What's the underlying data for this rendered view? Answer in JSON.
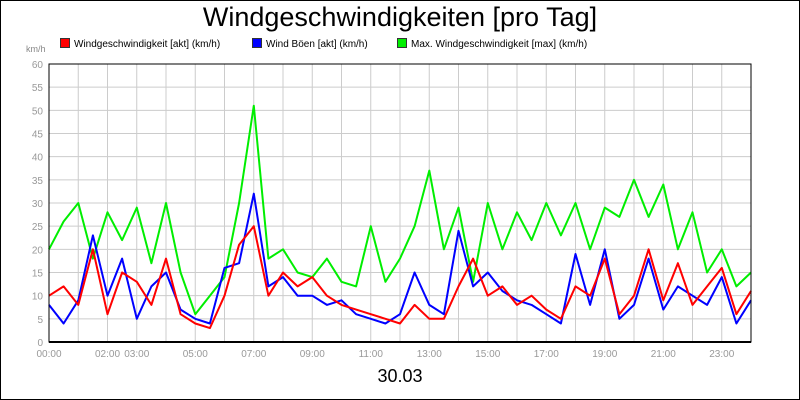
{
  "chart_data": {
    "type": "line",
    "title": "Windgeschwindigkeiten [pro Tag]",
    "subtitle": "30.03",
    "yunit": "km/h",
    "ylim": [
      0,
      60
    ],
    "yticks": [
      0,
      5,
      10,
      15,
      20,
      25,
      30,
      35,
      40,
      45,
      50,
      55,
      60
    ],
    "xlim": [
      0,
      24
    ],
    "xticks": [
      {
        "h": 0,
        "label": "00:00"
      },
      {
        "h": 2,
        "label": "02:00"
      },
      {
        "h": 3,
        "label": "03:00"
      },
      {
        "h": 5,
        "label": "05:00"
      },
      {
        "h": 7,
        "label": "07:00"
      },
      {
        "h": 9,
        "label": "09:00"
      },
      {
        "h": 11,
        "label": "11:00"
      },
      {
        "h": 13,
        "label": "13:00"
      },
      {
        "h": 15,
        "label": "15:00"
      },
      {
        "h": 17,
        "label": "17:00"
      },
      {
        "h": 19,
        "label": "19:00"
      },
      {
        "h": 21,
        "label": "21:00"
      },
      {
        "h": 23,
        "label": "23:00"
      }
    ],
    "grid": true,
    "legend_position": "top",
    "series": [
      {
        "name": "Windgeschwindigkeit [akt] (km/h)",
        "color": "#ff0000",
        "x": [
          0,
          0.5,
          1,
          1.5,
          2,
          2.5,
          3,
          3.5,
          4,
          4.5,
          5,
          5.5,
          6,
          6.5,
          7,
          7.5,
          8,
          8.5,
          9,
          9.5,
          10,
          10.5,
          11,
          11.5,
          12,
          12.5,
          13,
          13.5,
          14,
          14.5,
          15,
          15.5,
          16,
          16.5,
          17,
          17.5,
          18,
          18.5,
          19,
          19.5,
          20,
          20.5,
          21,
          21.5,
          22,
          22.5,
          23,
          23.5,
          24
        ],
        "values": [
          10,
          12,
          8,
          20,
          6,
          15,
          13,
          8,
          18,
          6,
          4,
          3,
          10,
          21,
          25,
          10,
          15,
          12,
          14,
          10,
          8,
          7,
          6,
          5,
          4,
          8,
          5,
          5,
          12,
          18,
          10,
          12,
          8,
          10,
          7,
          5,
          12,
          10,
          18,
          6,
          10,
          20,
          9,
          17,
          8,
          12,
          16,
          6,
          11
        ]
      },
      {
        "name": "Wind Böen [akt] (km/h)",
        "color": "#0000ff",
        "x": [
          0,
          0.5,
          1,
          1.5,
          2,
          2.5,
          3,
          3.5,
          4,
          4.5,
          5,
          5.5,
          6,
          6.5,
          7,
          7.5,
          8,
          8.5,
          9,
          9.5,
          10,
          10.5,
          11,
          11.5,
          12,
          12.5,
          13,
          13.5,
          14,
          14.5,
          15,
          15.5,
          16,
          16.5,
          17,
          17.5,
          18,
          18.5,
          19,
          19.5,
          20,
          20.5,
          21,
          21.5,
          22,
          22.5,
          23,
          23.5,
          24
        ],
        "values": [
          8,
          4,
          9,
          23,
          10,
          18,
          5,
          12,
          15,
          7,
          5,
          4,
          16,
          17,
          32,
          12,
          14,
          10,
          10,
          8,
          9,
          6,
          5,
          4,
          6,
          15,
          8,
          6,
          24,
          12,
          15,
          11,
          9,
          8,
          6,
          4,
          19,
          8,
          20,
          5,
          8,
          18,
          7,
          12,
          10,
          8,
          14,
          4,
          9
        ]
      },
      {
        "name": "Max. Windgeschwindigkeit [max] (km/h)",
        "color": "#00ee00",
        "x": [
          0,
          0.5,
          1,
          1.5,
          2,
          2.5,
          3,
          3.5,
          4,
          4.5,
          5,
          5.5,
          6,
          6.5,
          7,
          7.5,
          8,
          8.5,
          9,
          9.5,
          10,
          10.5,
          11,
          11.5,
          12,
          12.5,
          13,
          13.5,
          14,
          14.5,
          15,
          15.5,
          16,
          16.5,
          17,
          17.5,
          18,
          18.5,
          19,
          19.5,
          20,
          20.5,
          21,
          21.5,
          22,
          22.5,
          23,
          23.5,
          24
        ],
        "values": [
          20,
          26,
          30,
          18,
          28,
          22,
          29,
          17,
          30,
          15,
          6,
          10,
          14,
          30,
          51,
          18,
          20,
          15,
          14,
          18,
          13,
          12,
          25,
          13,
          18,
          25,
          37,
          20,
          29,
          13,
          30,
          20,
          28,
          22,
          30,
          23,
          30,
          20,
          29,
          27,
          35,
          27,
          34,
          20,
          28,
          15,
          20,
          12,
          15
        ]
      }
    ]
  }
}
